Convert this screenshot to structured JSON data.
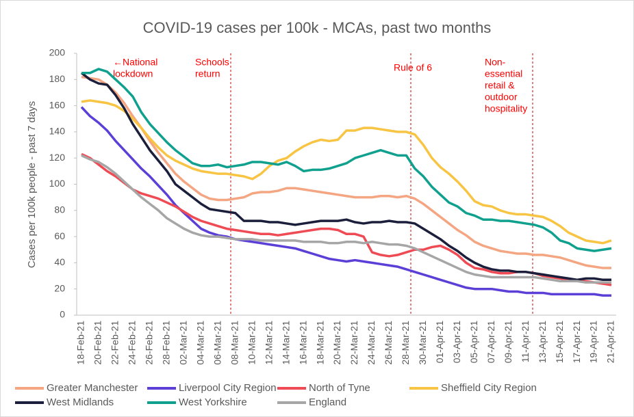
{
  "chart_data": {
    "type": "line",
    "title": "COVID-19 cases per 100k - MCAs, past two months",
    "y_label": "Cases per 100k people - past 7 days",
    "categories": [
      "18-Feb-21",
      null,
      "20-Feb-21",
      null,
      "22-Feb-21",
      null,
      "24-Feb-21",
      null,
      "26-Feb-21",
      null,
      "28-Feb-21",
      null,
      "02-Mar-21",
      null,
      "04-Mar-21",
      null,
      "06-Mar-21",
      null,
      "08-Mar-21",
      null,
      "10-Mar-21",
      null,
      "12-Mar-21",
      null,
      "14-Mar-21",
      null,
      "16-Mar-21",
      null,
      "18-Mar-21",
      null,
      "20-Mar-21",
      null,
      "22-Mar-21",
      null,
      "24-Mar-21",
      null,
      "26-Mar-21",
      null,
      "28-Mar-21",
      null,
      "30-Mar-21",
      null,
      "01-Apr-21",
      null,
      "03-Apr-21",
      null,
      "05-Apr-21",
      null,
      "07-Apr-21",
      null,
      "09-Apr-21",
      null,
      "11-Apr-21",
      null,
      "13-Apr-21",
      null,
      "15-Apr-21",
      null,
      "17-Apr-21",
      null,
      "19-Apr-21",
      null,
      "21-Apr-21"
    ],
    "series": [
      {
        "name": "Greater Manchester",
        "color": "#f4a582",
        "values": [
          182,
          181,
          180,
          176,
          170,
          162,
          152,
          143,
          133,
          124,
          116,
          108,
          102,
          97,
          92,
          89,
          88,
          88,
          89,
          90,
          93,
          94,
          94,
          95,
          97,
          97,
          96,
          95,
          94,
          93,
          92,
          91,
          90,
          90,
          90,
          91,
          91,
          90,
          91,
          89,
          85,
          80,
          75,
          70,
          65,
          61,
          56,
          53,
          51,
          49,
          48,
          47,
          47,
          46,
          46,
          45,
          44,
          42,
          40,
          38,
          37,
          36,
          36
        ]
      },
      {
        "name": "Liverpool City Region",
        "color": "#5b3fd6",
        "values": [
          159,
          152,
          147,
          141,
          133,
          126,
          119,
          112,
          106,
          99,
          92,
          84,
          78,
          72,
          66,
          63,
          61,
          60,
          58,
          57,
          56,
          55,
          54,
          53,
          52,
          51,
          49,
          47,
          45,
          43,
          42,
          41,
          42,
          41,
          40,
          39,
          38,
          37,
          35,
          33,
          31,
          29,
          27,
          25,
          23,
          21,
          20,
          20,
          20,
          19,
          18,
          18,
          17,
          17,
          17,
          16,
          16,
          16,
          16,
          16,
          16,
          15,
          15
        ]
      },
      {
        "name": "North of Tyne",
        "color": "#ee4b55",
        "values": [
          123,
          120,
          115,
          110,
          106,
          101,
          96,
          93,
          91,
          89,
          86,
          83,
          79,
          75,
          72,
          70,
          68,
          66,
          65,
          64,
          63,
          62,
          62,
          61,
          62,
          63,
          64,
          65,
          66,
          66,
          65,
          62,
          62,
          60,
          48,
          46,
          45,
          46,
          48,
          50,
          50,
          52,
          53,
          50,
          46,
          40,
          36,
          35,
          33,
          32,
          32,
          33,
          33,
          32,
          30,
          29,
          28,
          27,
          26,
          26,
          25,
          24,
          23
        ]
      },
      {
        "name": "Sheffield City Region",
        "color": "#f7c443",
        "values": [
          163,
          164,
          163,
          162,
          160,
          156,
          150,
          143,
          135,
          128,
          122,
          118,
          115,
          112,
          110,
          109,
          108,
          108,
          107,
          106,
          104,
          108,
          114,
          118,
          120,
          125,
          129,
          132,
          134,
          133,
          134,
          141,
          141,
          143,
          143,
          142,
          141,
          140,
          140,
          138,
          130,
          120,
          113,
          108,
          102,
          95,
          87,
          84,
          83,
          80,
          78,
          77,
          77,
          76,
          75,
          72,
          68,
          63,
          60,
          57,
          56,
          55,
          57
        ]
      },
      {
        "name": "West Midlands",
        "color": "#1b1f3b",
        "values": [
          185,
          180,
          177,
          176,
          168,
          158,
          146,
          136,
          126,
          118,
          110,
          100,
          95,
          90,
          85,
          81,
          80,
          79,
          78,
          72,
          72,
          72,
          71,
          71,
          70,
          69,
          70,
          71,
          72,
          72,
          72,
          73,
          71,
          70,
          71,
          71,
          72,
          71,
          71,
          70,
          66,
          62,
          58,
          53,
          49,
          44,
          40,
          37,
          35,
          34,
          34,
          33,
          33,
          32,
          31,
          30,
          29,
          28,
          27,
          28,
          28,
          27,
          27
        ]
      },
      {
        "name": "West Yorkshire",
        "color": "#10a08e",
        "values": [
          185,
          185,
          188,
          186,
          180,
          174,
          167,
          155,
          146,
          139,
          132,
          126,
          121,
          116,
          114,
          114,
          115,
          113,
          114,
          115,
          117,
          117,
          116,
          115,
          117,
          114,
          110,
          111,
          111,
          112,
          114,
          116,
          120,
          122,
          124,
          126,
          124,
          122,
          122,
          112,
          106,
          98,
          92,
          86,
          83,
          78,
          76,
          73,
          73,
          72,
          72,
          71,
          70,
          69,
          67,
          63,
          57,
          55,
          51,
          50,
          49,
          50,
          51
        ]
      },
      {
        "name": "England",
        "color": "#a6a6a6",
        "values": [
          122,
          119,
          117,
          113,
          108,
          102,
          96,
          90,
          85,
          80,
          74,
          70,
          66,
          63,
          61,
          60,
          60,
          59,
          58,
          58,
          58,
          57,
          57,
          57,
          57,
          57,
          56,
          56,
          56,
          55,
          55,
          56,
          56,
          55,
          56,
          55,
          54,
          54,
          53,
          51,
          48,
          45,
          42,
          39,
          36,
          33,
          31,
          30,
          29,
          29,
          29,
          29,
          29,
          29,
          28,
          27,
          26,
          26,
          26,
          25,
          25,
          25,
          25
        ]
      }
    ],
    "ylim": [
      0,
      200
    ],
    "yticks": [
      0,
      20,
      40,
      60,
      80,
      100,
      120,
      140,
      160,
      180,
      200
    ],
    "annotations": [
      {
        "lines": [
          "←National",
          "lockdown"
        ]
      },
      {
        "lines": [
          "Schools",
          "return"
        ]
      },
      {
        "lines": [
          "Rule of 6"
        ]
      },
      {
        "lines": [
          "Non-",
          "essential",
          "retail &",
          "outdoor",
          "hospitality"
        ]
      }
    ]
  }
}
